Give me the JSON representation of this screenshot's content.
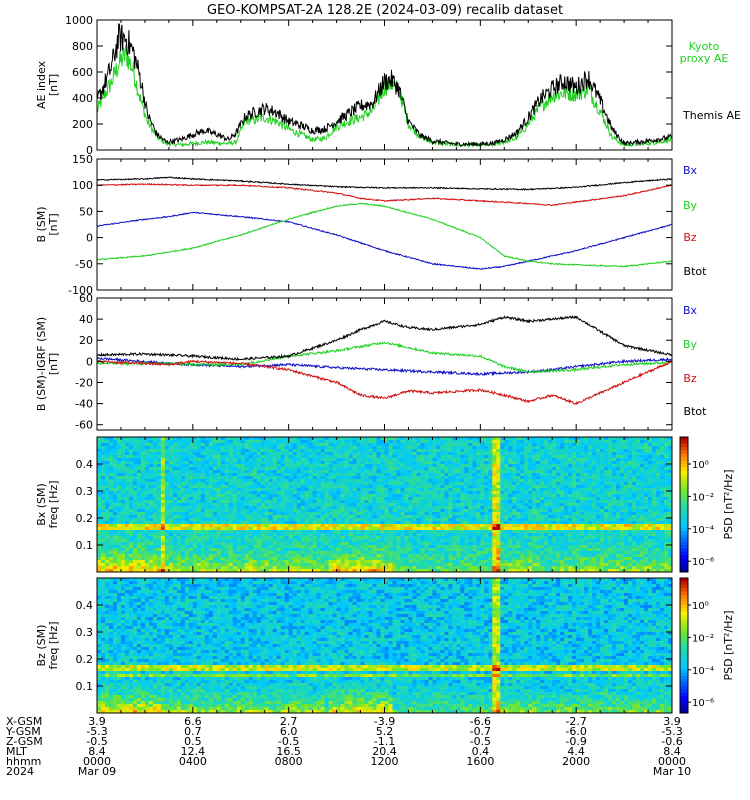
{
  "title": "GEO-KOMPSAT-2A 128.2E (2024-03-09) recalib dataset",
  "colors": {
    "black": "#000000",
    "blue": "#1010c8",
    "green": "#20d020",
    "red": "#d01010"
  },
  "chart_data": [
    {
      "type": "line",
      "panel": "ae",
      "ylabel": "AE index",
      "yunit": "[nT]",
      "ylim": [
        0,
        1000
      ],
      "yticks": [
        0,
        200,
        400,
        600,
        800,
        1000
      ],
      "xlim": [
        0,
        24
      ],
      "series": [
        {
          "name": "Kyoto proxy AE",
          "color": "#20d020",
          "x": [
            0,
            0.3,
            0.6,
            0.9,
            1.2,
            1.5,
            1.8,
            2.1,
            2.5,
            2.9,
            3.5,
            4.0,
            4.5,
            5.0,
            5.5,
            5.8,
            6.2,
            6.6,
            7.0,
            7.5,
            8.0,
            8.5,
            9.0,
            9.5,
            10.0,
            10.5,
            11.0,
            11.5,
            12.0,
            12.3,
            12.6,
            13.0,
            13.5,
            14.0,
            15.0,
            16.0,
            16.5,
            17.0,
            17.5,
            18.0,
            18.5,
            19.0,
            19.5,
            20.0,
            20.5,
            21.0,
            21.5,
            22.0,
            23.0,
            24.0
          ],
          "y": [
            300,
            420,
            520,
            660,
            740,
            620,
            400,
            220,
            100,
            50,
            40,
            50,
            60,
            55,
            50,
            60,
            230,
            230,
            250,
            220,
            160,
            120,
            80,
            90,
            180,
            220,
            250,
            300,
            480,
            510,
            460,
            200,
            100,
            60,
            40,
            40,
            45,
            60,
            90,
            200,
            330,
            420,
            440,
            430,
            470,
            300,
            100,
            40,
            50,
            80
          ]
        },
        {
          "name": "Themis AE",
          "color": "#000000",
          "x": [
            0,
            0.3,
            0.6,
            0.9,
            1.2,
            1.5,
            1.8,
            2.1,
            2.5,
            2.9,
            3.5,
            4.0,
            4.5,
            5.0,
            5.5,
            5.8,
            6.2,
            6.6,
            7.0,
            7.5,
            8.0,
            8.5,
            9.0,
            9.5,
            10.0,
            10.5,
            11.0,
            11.5,
            12.0,
            12.3,
            12.6,
            13.0,
            13.5,
            14.0,
            15.0,
            16.0,
            16.5,
            17.0,
            17.5,
            18.0,
            18.5,
            19.0,
            19.5,
            20.0,
            20.5,
            21.0,
            21.5,
            22.0,
            23.0,
            24.0
          ],
          "y": [
            380,
            500,
            640,
            860,
            860,
            760,
            560,
            280,
            120,
            60,
            80,
            120,
            150,
            120,
            80,
            130,
            260,
            290,
            320,
            290,
            220,
            190,
            150,
            160,
            220,
            280,
            340,
            360,
            530,
            540,
            470,
            220,
            110,
            70,
            45,
            45,
            50,
            80,
            130,
            250,
            390,
            470,
            530,
            480,
            560,
            380,
            160,
            50,
            70,
            100
          ]
        }
      ]
    },
    {
      "type": "line",
      "panel": "b",
      "ylabel": "B (SM)",
      "yunit": "[nT]",
      "ylim": [
        -100,
        150
      ],
      "yticks": [
        -100,
        -50,
        0,
        50,
        100,
        150
      ],
      "xlim": [
        0,
        24
      ],
      "series": [
        {
          "name": "Bx",
          "color": "#1010c8",
          "x": [
            0,
            2,
            3,
            4,
            6,
            8,
            10,
            12,
            14,
            16,
            17,
            18,
            19,
            20,
            22,
            24
          ],
          "y": [
            22,
            35,
            40,
            48,
            40,
            30,
            5,
            -25,
            -50,
            -60,
            -55,
            -45,
            -35,
            -25,
            0,
            25
          ]
        },
        {
          "name": "By",
          "color": "#20d020",
          "x": [
            0,
            2,
            4,
            6,
            8,
            9,
            10,
            11,
            12,
            14,
            16,
            17,
            18,
            19,
            20,
            22,
            24
          ],
          "y": [
            -42,
            -35,
            -20,
            5,
            35,
            48,
            60,
            65,
            60,
            35,
            0,
            -35,
            -45,
            -50,
            -52,
            -55,
            -45
          ]
        },
        {
          "name": "Bz",
          "color": "#d01010",
          "x": [
            0,
            2,
            4,
            6,
            8,
            10,
            11,
            12,
            14,
            16,
            18,
            19,
            20,
            22,
            24
          ],
          "y": [
            100,
            102,
            100,
            100,
            95,
            85,
            75,
            70,
            75,
            70,
            65,
            62,
            68,
            80,
            100
          ]
        },
        {
          "name": "Btot",
          "color": "#000000",
          "x": [
            0,
            2,
            3,
            4,
            6,
            8,
            10,
            12,
            14,
            16,
            18,
            20,
            22,
            24
          ],
          "y": [
            110,
            112,
            115,
            112,
            108,
            102,
            97,
            95,
            95,
            93,
            92,
            96,
            105,
            112
          ]
        }
      ]
    },
    {
      "type": "line",
      "panel": "dbt",
      "ylabel": "B (SM)-IGRF (SM)",
      "yunit": "[nT]",
      "ylim": [
        -65,
        60
      ],
      "yticks": [
        -60,
        -40,
        -20,
        0,
        20,
        40,
        60
      ],
      "xlim": [
        0,
        24
      ],
      "series": [
        {
          "name": "Bx",
          "color": "#1010c8",
          "x": [
            0,
            3,
            6,
            8,
            10,
            12,
            14,
            16,
            18,
            19,
            20,
            22,
            24
          ],
          "y": [
            3,
            -2,
            -5,
            -3,
            -6,
            -8,
            -10,
            -12,
            -10,
            -8,
            -5,
            0,
            2
          ]
        },
        {
          "name": "By",
          "color": "#20d020",
          "x": [
            0,
            3,
            4,
            6,
            8,
            10,
            12,
            14,
            16,
            17,
            18,
            20,
            22,
            24
          ],
          "y": [
            -2,
            -2,
            -3,
            -3,
            5,
            10,
            18,
            8,
            5,
            -5,
            -10,
            -8,
            -3,
            -1
          ]
        },
        {
          "name": "Bz",
          "color": "#d01010",
          "x": [
            0,
            2,
            3,
            4,
            6,
            8,
            10,
            11,
            12,
            13,
            14,
            16,
            17,
            18,
            19,
            20,
            22,
            24
          ],
          "y": [
            0,
            -2,
            -3,
            0,
            -2,
            -8,
            -20,
            -32,
            -35,
            -28,
            -30,
            -27,
            -32,
            -38,
            -32,
            -40,
            -20,
            0
          ]
        },
        {
          "name": "Btot",
          "color": "#000000",
          "x": [
            0,
            2,
            4,
            6,
            8,
            10,
            11,
            12,
            13,
            14,
            16,
            17,
            18,
            19,
            20,
            22,
            24
          ],
          "y": [
            6,
            7,
            5,
            2,
            5,
            20,
            30,
            38,
            32,
            30,
            35,
            42,
            38,
            40,
            42,
            15,
            6
          ]
        }
      ]
    },
    {
      "type": "heatmap",
      "panel": "bx",
      "ylabel": "Bx (SM)",
      "yunit": "freq [Hz]",
      "ylim": [
        0,
        0.5
      ],
      "yticks": [
        0.1,
        0.2,
        0.3,
        0.4
      ],
      "colorbar": {
        "label": "PSD [nT²/Hz]",
        "ticks": [
          "10⁻⁶",
          "10⁻⁴",
          "10⁻²",
          "10⁰"
        ]
      }
    },
    {
      "type": "heatmap",
      "panel": "bz",
      "ylabel": "Bz (SM)",
      "yunit": "freq [Hz]",
      "ylim": [
        0,
        0.5
      ],
      "yticks": [
        0.1,
        0.2,
        0.3,
        0.4
      ],
      "colorbar": {
        "label": "PSD [nT²/Hz]",
        "ticks": [
          "10⁻⁶",
          "10⁻⁴",
          "10⁻²",
          "10⁰"
        ]
      }
    }
  ],
  "legend": {
    "ae": [
      "Kyoto\nproxy AE",
      "Themis AE"
    ],
    "b": [
      "Bx",
      "By",
      "Bz",
      "Btot"
    ],
    "dbt": [
      "Bx",
      "By",
      "Bz",
      "Btot"
    ]
  },
  "footer": {
    "labels": [
      "X-GSM",
      "Y-GSM",
      "Z-GSM",
      "MLT",
      "hhmm",
      "2024"
    ],
    "columns": [
      [
        "3.9",
        "-5.3",
        "-0.5",
        "8.4",
        "0000",
        "Mar 09"
      ],
      [
        "6.6",
        "0.7",
        "0.5",
        "12.4",
        "0400",
        ""
      ],
      [
        "2.7",
        "6.0",
        "-0.5",
        "16.5",
        "0800",
        ""
      ],
      [
        "-3.9",
        "5.2",
        "-1.1",
        "20.4",
        "1200",
        ""
      ],
      [
        "-6.6",
        "-0.7",
        "-0.5",
        "0.4",
        "1600",
        ""
      ],
      [
        "-2.7",
        "-6.0",
        "-0.9",
        "4.4",
        "2000",
        ""
      ],
      [
        "3.9",
        "-5.3",
        "-0.6",
        "8.4",
        "0000",
        "Mar 10"
      ]
    ]
  }
}
